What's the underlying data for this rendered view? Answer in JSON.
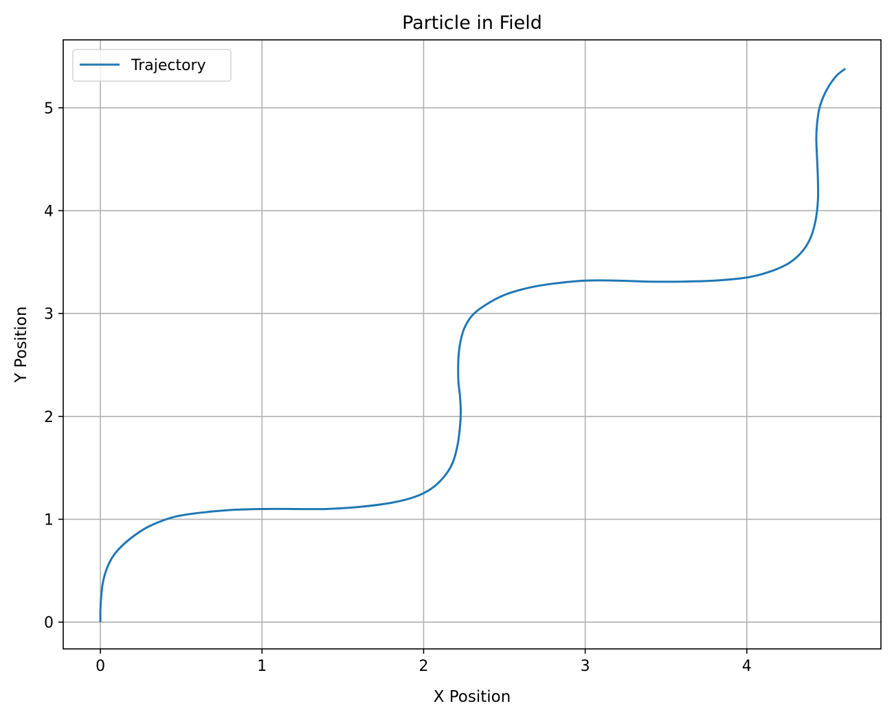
{
  "chart_data": {
    "type": "line",
    "title": "Particle in Field",
    "xlabel": "X Position",
    "ylabel": "Y Position",
    "xlim": [
      -0.23,
      4.83
    ],
    "ylim": [
      -0.26,
      5.66
    ],
    "xticks": [
      0,
      1,
      2,
      3,
      4
    ],
    "yticks": [
      0,
      1,
      2,
      3,
      4,
      5
    ],
    "grid": true,
    "legend_position": "upper-left",
    "series": [
      {
        "name": "Trajectory",
        "color": "#1f77b4",
        "points": [
          [
            0.0,
            0.0
          ],
          [
            0.0,
            0.12
          ],
          [
            0.005,
            0.25
          ],
          [
            0.015,
            0.38
          ],
          [
            0.035,
            0.5
          ],
          [
            0.07,
            0.62
          ],
          [
            0.12,
            0.72
          ],
          [
            0.2,
            0.83
          ],
          [
            0.3,
            0.93
          ],
          [
            0.45,
            1.02
          ],
          [
            0.6,
            1.06
          ],
          [
            0.8,
            1.09
          ],
          [
            1.0,
            1.1
          ],
          [
            1.2,
            1.1
          ],
          [
            1.4,
            1.1
          ],
          [
            1.6,
            1.12
          ],
          [
            1.8,
            1.16
          ],
          [
            1.95,
            1.22
          ],
          [
            2.05,
            1.3
          ],
          [
            2.13,
            1.42
          ],
          [
            2.18,
            1.55
          ],
          [
            2.21,
            1.72
          ],
          [
            2.225,
            1.9
          ],
          [
            2.23,
            2.05
          ],
          [
            2.225,
            2.2
          ],
          [
            2.215,
            2.35
          ],
          [
            2.215,
            2.55
          ],
          [
            2.225,
            2.7
          ],
          [
            2.25,
            2.85
          ],
          [
            2.3,
            2.98
          ],
          [
            2.38,
            3.08
          ],
          [
            2.5,
            3.18
          ],
          [
            2.65,
            3.25
          ],
          [
            2.8,
            3.29
          ],
          [
            3.0,
            3.32
          ],
          [
            3.2,
            3.32
          ],
          [
            3.4,
            3.31
          ],
          [
            3.6,
            3.31
          ],
          [
            3.8,
            3.32
          ],
          [
            4.0,
            3.35
          ],
          [
            4.13,
            3.4
          ],
          [
            4.25,
            3.48
          ],
          [
            4.33,
            3.58
          ],
          [
            4.39,
            3.72
          ],
          [
            4.425,
            3.9
          ],
          [
            4.44,
            4.1
          ],
          [
            4.44,
            4.3
          ],
          [
            4.435,
            4.5
          ],
          [
            4.43,
            4.7
          ],
          [
            4.435,
            4.85
          ],
          [
            4.45,
            5.0
          ],
          [
            4.48,
            5.13
          ],
          [
            4.52,
            5.24
          ],
          [
            4.56,
            5.32
          ],
          [
            4.61,
            5.38
          ]
        ]
      }
    ]
  }
}
